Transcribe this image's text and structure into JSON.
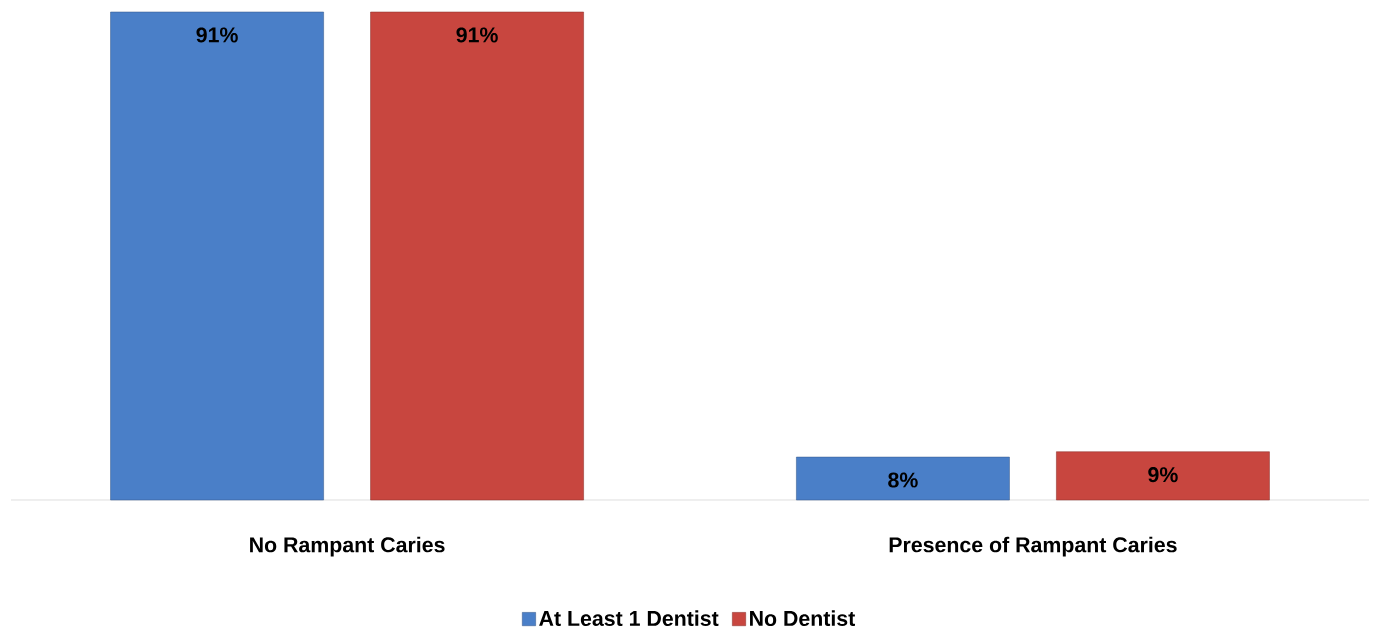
{
  "chart_data": {
    "type": "bar",
    "categories": [
      "No Rampant Caries",
      "Presence of Rampant Caries"
    ],
    "series": [
      {
        "name": "At Least 1 Dentist",
        "color": "#4a7fc8",
        "values": [
          91,
          8
        ],
        "value_labels": [
          "91%",
          "8%"
        ]
      },
      {
        "name": "No Dentist",
        "color": "#c8463f",
        "values": [
          91,
          9
        ],
        "value_labels": [
          "91%",
          "9%"
        ]
      }
    ],
    "legend": "bottom"
  }
}
